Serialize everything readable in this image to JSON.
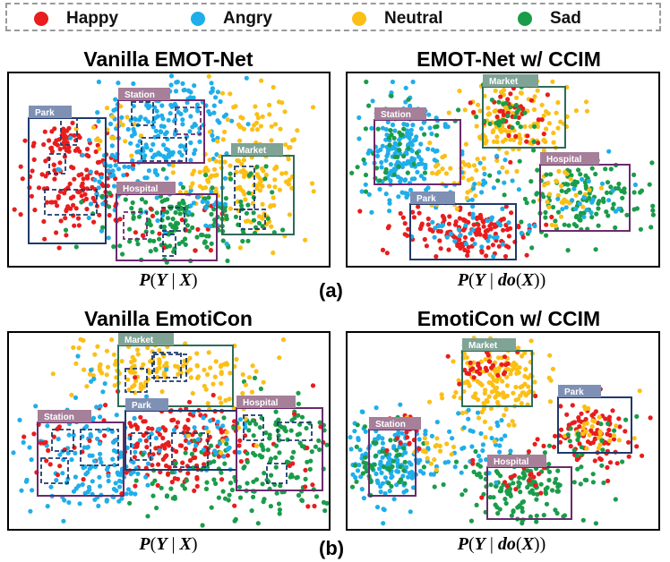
{
  "legend": [
    {
      "label": "Happy",
      "color": "#e81d1d"
    },
    {
      "label": "Angry",
      "color": "#1faee9"
    },
    {
      "label": "Neutral",
      "color": "#fbbf16"
    },
    {
      "label": "Sad",
      "color": "#1a9c4a"
    }
  ],
  "row_labels": {
    "a": "(a)",
    "b": "(b)"
  },
  "colors": {
    "happy": "#e81d1d",
    "angry": "#1faee9",
    "neutral": "#fbbf16",
    "sad": "#1a9c4a",
    "navy": "#1f3a6b",
    "purple": "#6b2a6b",
    "green": "#2f6b5a"
  },
  "chart_data": [
    {
      "type": "scatter",
      "title": "Vanilla EMOT-Net",
      "xlabel": "P(Y | X)",
      "labels": [
        "Park",
        "Station",
        "Market",
        "Hospital"
      ]
    },
    {
      "type": "scatter",
      "title": "EMOT-Net w/ CCIM",
      "xlabel": "P(Y | do(X))",
      "labels": [
        "Market",
        "Station",
        "Hospital",
        "Park"
      ]
    },
    {
      "type": "scatter",
      "title": "Vanilla EmotiCon",
      "xlabel": "P(Y | X)",
      "labels": [
        "Market",
        "Park",
        "Hospital",
        "Station"
      ]
    },
    {
      "type": "scatter",
      "title": "EmotiCon w/ CCIM",
      "xlabel": "P(Y | do(X))",
      "labels": [
        "Market",
        "Park",
        "Station",
        "Hospital"
      ]
    }
  ]
}
